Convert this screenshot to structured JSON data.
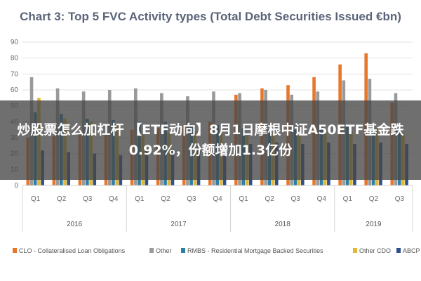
{
  "chart_data": {
    "type": "bar",
    "title": "Chart 3: Top 5 FVC Activity types (Total Debt Securities Issued €bn)",
    "years": [
      {
        "label": "2016",
        "quarters": [
          "Q1",
          "Q2",
          "Q3",
          "Q4"
        ]
      },
      {
        "label": "2017",
        "quarters": [
          "Q1",
          "Q2",
          "Q3",
          "Q4"
        ]
      },
      {
        "label": "2018",
        "quarters": [
          "Q1",
          "Q2",
          "Q3",
          "Q4"
        ]
      },
      {
        "label": "2019",
        "quarters": [
          "Q1",
          "Q2",
          "Q3"
        ]
      }
    ],
    "ylim": [
      0,
      90
    ],
    "yticks": [
      0,
      10,
      20,
      30,
      40,
      50,
      60,
      70,
      80,
      90
    ],
    "grid": true,
    "legend_position": "bottom",
    "series": [
      {
        "name": "CLO - Collateralised Loan Obligations",
        "color": "#e8762b",
        "values": [
          30,
          31,
          32,
          33,
          35,
          36,
          38,
          40,
          57,
          61,
          63,
          68,
          76,
          83,
          52
        ]
      },
      {
        "name": "Other",
        "color": "#9a9a9a",
        "values": [
          68,
          61,
          59,
          60,
          61,
          58,
          56,
          59,
          58,
          60,
          57,
          59,
          66,
          67,
          58
        ]
      },
      {
        "name": "RMBS - Residential Mortgage Backed Securities",
        "color": "#2e7fa6",
        "values": [
          46,
          45,
          42,
          41,
          40,
          40,
          38,
          38,
          36,
          35,
          35,
          37,
          38,
          39,
          36
        ]
      },
      {
        "name": "Other CDO",
        "color": "#e3b832",
        "values": [
          55,
          42,
          40,
          38,
          32,
          33,
          34,
          35,
          31,
          33,
          32,
          35,
          34,
          36,
          33
        ]
      },
      {
        "name": "ABCP",
        "color": "#2f4f8f",
        "values": [
          22,
          21,
          20,
          19,
          22,
          23,
          24,
          25,
          26,
          27,
          26,
          27,
          26,
          27,
          26
        ]
      }
    ]
  },
  "overlay": {
    "headline": "炒股票怎么加杠杆 【ETF动向】8月1日摩根中证A50ETF基金跌0.92%，份额增加1.3亿份"
  }
}
